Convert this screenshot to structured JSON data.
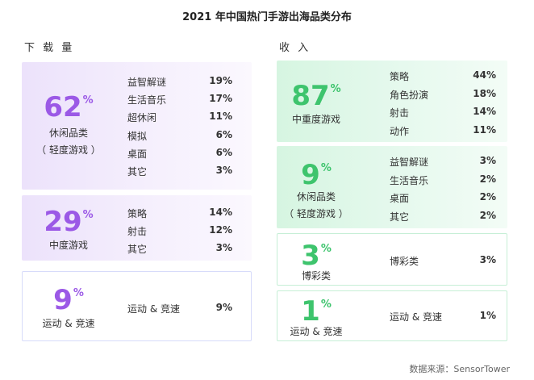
{
  "title": "2021 年中国热门手游出海品类分布",
  "source": "数据来源：SensorTower",
  "colors": {
    "purple": "#9b59e6",
    "green": "#3ec46d"
  },
  "chart_data": [
    {
      "type": "table",
      "column": "下 载 量",
      "groups": [
        {
          "percent": "62",
          "unit": "%",
          "label_lines": [
            "休闲品类",
            "（ 轻度游戏 ）"
          ],
          "items": [
            {
              "name": "益智解谜",
              "value": "19%"
            },
            {
              "name": "生活音乐",
              "value": "17%"
            },
            {
              "name": "超休闲",
              "value": "11%"
            },
            {
              "name": "模拟",
              "value": "6%"
            },
            {
              "name": "桌面",
              "value": "6%"
            },
            {
              "name": "其它",
              "value": "3%"
            }
          ]
        },
        {
          "percent": "29",
          "unit": "%",
          "label_lines": [
            "中度游戏"
          ],
          "items": [
            {
              "name": "策略",
              "value": "14%"
            },
            {
              "name": "射击",
              "value": "12%"
            },
            {
              "name": "其它",
              "value": "3%"
            }
          ]
        },
        {
          "percent": "9",
          "unit": "%",
          "label_lines": [
            "运动 & 竞速"
          ],
          "items": [
            {
              "name": "运动 & 竞速",
              "value": "9%"
            }
          ]
        }
      ]
    },
    {
      "type": "table",
      "column": "收 入",
      "groups": [
        {
          "percent": "87",
          "unit": "%",
          "label_lines": [
            "中重度游戏"
          ],
          "items": [
            {
              "name": "策略",
              "value": "44%"
            },
            {
              "name": "角色扮演",
              "value": "18%"
            },
            {
              "name": "射击",
              "value": "14%"
            },
            {
              "name": "动作",
              "value": "11%"
            }
          ]
        },
        {
          "percent": "9",
          "unit": "%",
          "label_lines": [
            "休闲品类",
            "（ 轻度游戏 ）"
          ],
          "items": [
            {
              "name": "益智解谜",
              "value": "3%"
            },
            {
              "name": "生活音乐",
              "value": "2%"
            },
            {
              "name": "桌面",
              "value": "2%"
            },
            {
              "name": "其它",
              "value": "2%"
            }
          ]
        },
        {
          "percent": "3",
          "unit": "%",
          "label_lines": [
            "博彩类"
          ],
          "items": [
            {
              "name": "博彩类",
              "value": "3%"
            }
          ]
        },
        {
          "percent": "1",
          "unit": "%",
          "label_lines": [
            "运动 & 竞速"
          ],
          "items": [
            {
              "name": "运动 & 竞速",
              "value": "1%"
            }
          ]
        }
      ]
    }
  ]
}
